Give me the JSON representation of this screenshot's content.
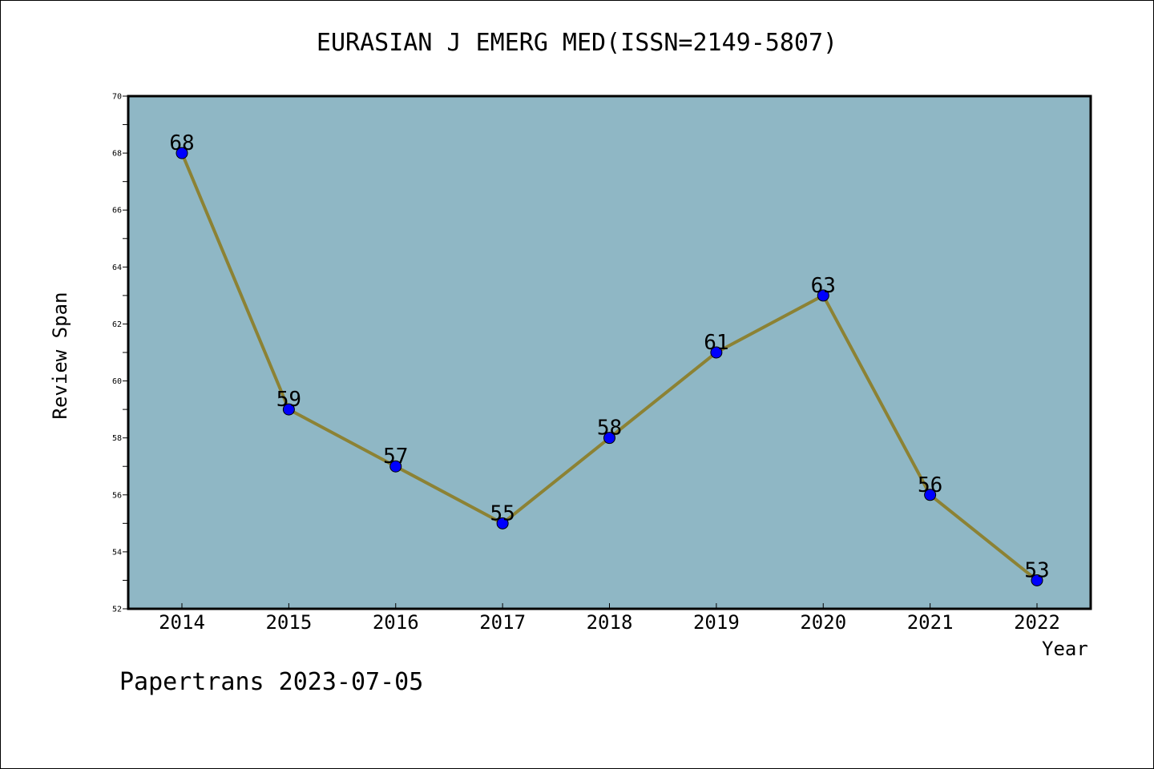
{
  "chart_data": {
    "type": "line",
    "title": "EURASIAN J EMERG MED(ISSN=2149-5807)",
    "xlabel": "Year",
    "ylabel": "Review Span",
    "categories": [
      "2014",
      "2015",
      "2016",
      "2017",
      "2018",
      "2019",
      "2020",
      "2021",
      "2022"
    ],
    "series": [
      {
        "values": [
          68,
          59,
          57,
          55,
          58,
          61,
          63,
          56,
          53
        ]
      }
    ],
    "ylim": [
      52,
      70
    ],
    "yticks": [
      52,
      54,
      56,
      58,
      60,
      62,
      64,
      66,
      68,
      70
    ],
    "data_labels": true,
    "grid": false,
    "colors": {
      "plot_background": "#8fb7c5",
      "line": "#8c8234",
      "marker": "#0000ff"
    }
  },
  "footer": {
    "watermark": "Papertrans 2023-07-05"
  }
}
